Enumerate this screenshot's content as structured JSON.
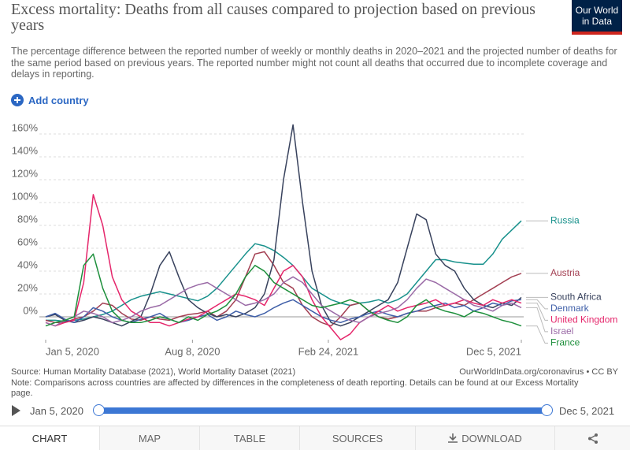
{
  "header": {
    "title": "Excess mortality: Deaths from all causes compared to projection based on previous years",
    "subtitle": "The percentage difference between the reported number of weekly or monthly deaths in 2020–2021 and the projected number of deaths for the same period based on previous years. The reported number might not count all deaths that occurred due to incomplete coverage and delays in reporting.",
    "logo": "Our World in Data",
    "add_country": "Add country"
  },
  "chart_data": {
    "type": "line",
    "x": [
      "2020-01-05",
      "2020-01-19",
      "2020-02-02",
      "2020-02-16",
      "2020-03-01",
      "2020-03-15",
      "2020-03-29",
      "2020-04-12",
      "2020-04-26",
      "2020-05-10",
      "2020-05-24",
      "2020-06-07",
      "2020-06-21",
      "2020-07-05",
      "2020-07-19",
      "2020-08-02",
      "2020-08-16",
      "2020-08-30",
      "2020-09-13",
      "2020-09-27",
      "2020-10-11",
      "2020-10-25",
      "2020-11-08",
      "2020-11-22",
      "2020-12-06",
      "2020-12-20",
      "2021-01-03",
      "2021-01-17",
      "2021-01-31",
      "2021-02-14",
      "2021-02-28",
      "2021-03-14",
      "2021-03-28",
      "2021-04-11",
      "2021-04-25",
      "2021-05-09",
      "2021-05-23",
      "2021-06-06",
      "2021-06-20",
      "2021-07-04",
      "2021-07-18",
      "2021-08-01",
      "2021-08-15",
      "2021-08-29",
      "2021-09-12",
      "2021-09-26",
      "2021-10-10",
      "2021-10-24",
      "2021-11-07",
      "2021-11-21",
      "2021-12-05"
    ],
    "xlim": [
      "2020-01-05",
      "2021-12-05"
    ],
    "xticks": [
      {
        "value": "2020-01-05",
        "label": "Jan 5, 2020"
      },
      {
        "value": "2020-08-08",
        "label": "Aug 8, 2020"
      },
      {
        "value": "2021-02-24",
        "label": "Feb 24, 2021"
      },
      {
        "value": "2021-12-05",
        "label": "Dec 5, 2021"
      }
    ],
    "ylim": [
      -20,
      170
    ],
    "yticks": [
      {
        "value": 0,
        "label": "0%"
      },
      {
        "value": 20,
        "label": "20%"
      },
      {
        "value": 40,
        "label": "40%"
      },
      {
        "value": 60,
        "label": "60%"
      },
      {
        "value": 80,
        "label": "80%"
      },
      {
        "value": 100,
        "label": "100%"
      },
      {
        "value": 120,
        "label": "120%"
      },
      {
        "value": 140,
        "label": "140%"
      },
      {
        "value": 160,
        "label": "160%"
      }
    ],
    "grid": true,
    "series": [
      {
        "name": "Russia",
        "color": "#18918c",
        "values": [
          -3,
          -3,
          -4,
          -3,
          -2,
          0,
          2,
          5,
          10,
          15,
          18,
          20,
          22,
          20,
          18,
          16,
          14,
          18,
          25,
          35,
          45,
          55,
          64,
          62,
          58,
          52,
          45,
          35,
          25,
          20,
          15,
          12,
          10,
          12,
          13,
          15,
          12,
          15,
          20,
          30,
          40,
          50,
          50,
          48,
          47,
          46,
          46,
          55,
          68,
          76,
          84
        ]
      },
      {
        "name": "Austria",
        "color": "#a33f52",
        "values": [
          -3,
          -5,
          -5,
          -2,
          0,
          5,
          12,
          10,
          3,
          -2,
          -3,
          0,
          -2,
          -3,
          0,
          2,
          3,
          5,
          0,
          5,
          15,
          35,
          55,
          57,
          45,
          30,
          25,
          10,
          0,
          -5,
          -8,
          0,
          10,
          12,
          5,
          0,
          -2,
          0,
          3,
          5,
          5,
          8,
          10,
          12,
          10,
          15,
          20,
          25,
          30,
          35,
          38
        ]
      },
      {
        "name": "South Africa",
        "color": "#38425d",
        "values": [
          0,
          2,
          -3,
          -5,
          -3,
          0,
          -2,
          -5,
          -8,
          -4,
          0,
          20,
          45,
          57,
          35,
          15,
          8,
          3,
          0,
          2,
          0,
          3,
          8,
          20,
          50,
          120,
          168,
          100,
          40,
          10,
          -5,
          -8,
          -5,
          0,
          5,
          10,
          15,
          30,
          60,
          90,
          85,
          55,
          45,
          40,
          25,
          15,
          10,
          8,
          12,
          10,
          17
        ]
      },
      {
        "name": "Denmark",
        "color": "#3f5fa8",
        "values": [
          0,
          3,
          -2,
          -5,
          0,
          8,
          5,
          0,
          -3,
          -5,
          -2,
          0,
          3,
          -2,
          -5,
          -3,
          0,
          2,
          -3,
          0,
          5,
          2,
          0,
          3,
          8,
          12,
          15,
          10,
          5,
          0,
          -3,
          -5,
          -2,
          0,
          3,
          5,
          2,
          0,
          3,
          5,
          8,
          10,
          12,
          8,
          10,
          5,
          8,
          12,
          10,
          14,
          15
        ]
      },
      {
        "name": "United Kingdom",
        "color": "#e5266b",
        "values": [
          -5,
          -8,
          -5,
          -3,
          30,
          107,
          80,
          35,
          15,
          5,
          0,
          -5,
          -5,
          -8,
          -5,
          -2,
          0,
          5,
          10,
          15,
          20,
          18,
          15,
          10,
          25,
          40,
          45,
          35,
          15,
          0,
          -10,
          -20,
          -15,
          -5,
          0,
          5,
          10,
          5,
          8,
          10,
          12,
          15,
          10,
          12,
          15,
          12,
          10,
          15,
          12,
          15,
          12
        ]
      },
      {
        "name": "Israel",
        "color": "#9a6aa6",
        "values": [
          -5,
          -8,
          -3,
          0,
          5,
          3,
          0,
          -5,
          -3,
          0,
          5,
          8,
          10,
          15,
          20,
          25,
          28,
          30,
          25,
          20,
          15,
          10,
          12,
          15,
          20,
          30,
          35,
          30,
          20,
          10,
          5,
          0,
          -3,
          -5,
          0,
          3,
          5,
          8,
          15,
          25,
          33,
          30,
          25,
          20,
          15,
          10,
          8,
          5,
          10,
          12,
          8
        ]
      },
      {
        "name": "France",
        "color": "#1d8f3b",
        "values": [
          -8,
          -5,
          -3,
          0,
          45,
          55,
          25,
          5,
          -3,
          -5,
          -5,
          -3,
          0,
          -2,
          -5,
          0,
          -3,
          2,
          5,
          10,
          20,
          35,
          45,
          40,
          30,
          25,
          20,
          15,
          10,
          8,
          10,
          12,
          15,
          12,
          5,
          0,
          -3,
          -5,
          0,
          10,
          15,
          8,
          5,
          3,
          0,
          5,
          3,
          0,
          -3,
          -5,
          -8
        ]
      }
    ]
  },
  "footer": {
    "source": "Source: Human Mortality Database (2021), World Mortality Dataset (2021)",
    "license": "OurWorldInData.org/coronavirus • CC BY",
    "note": "Note: Comparisons across countries are affected by differences in the completeness of death reporting. Details can be found at our Excess Mortality page."
  },
  "controls": {
    "timeline_start": "Jan 5, 2020",
    "timeline_end": "Dec 5, 2021",
    "tabs": [
      "CHART",
      "MAP",
      "TABLE",
      "SOURCES",
      "DOWNLOAD"
    ]
  }
}
